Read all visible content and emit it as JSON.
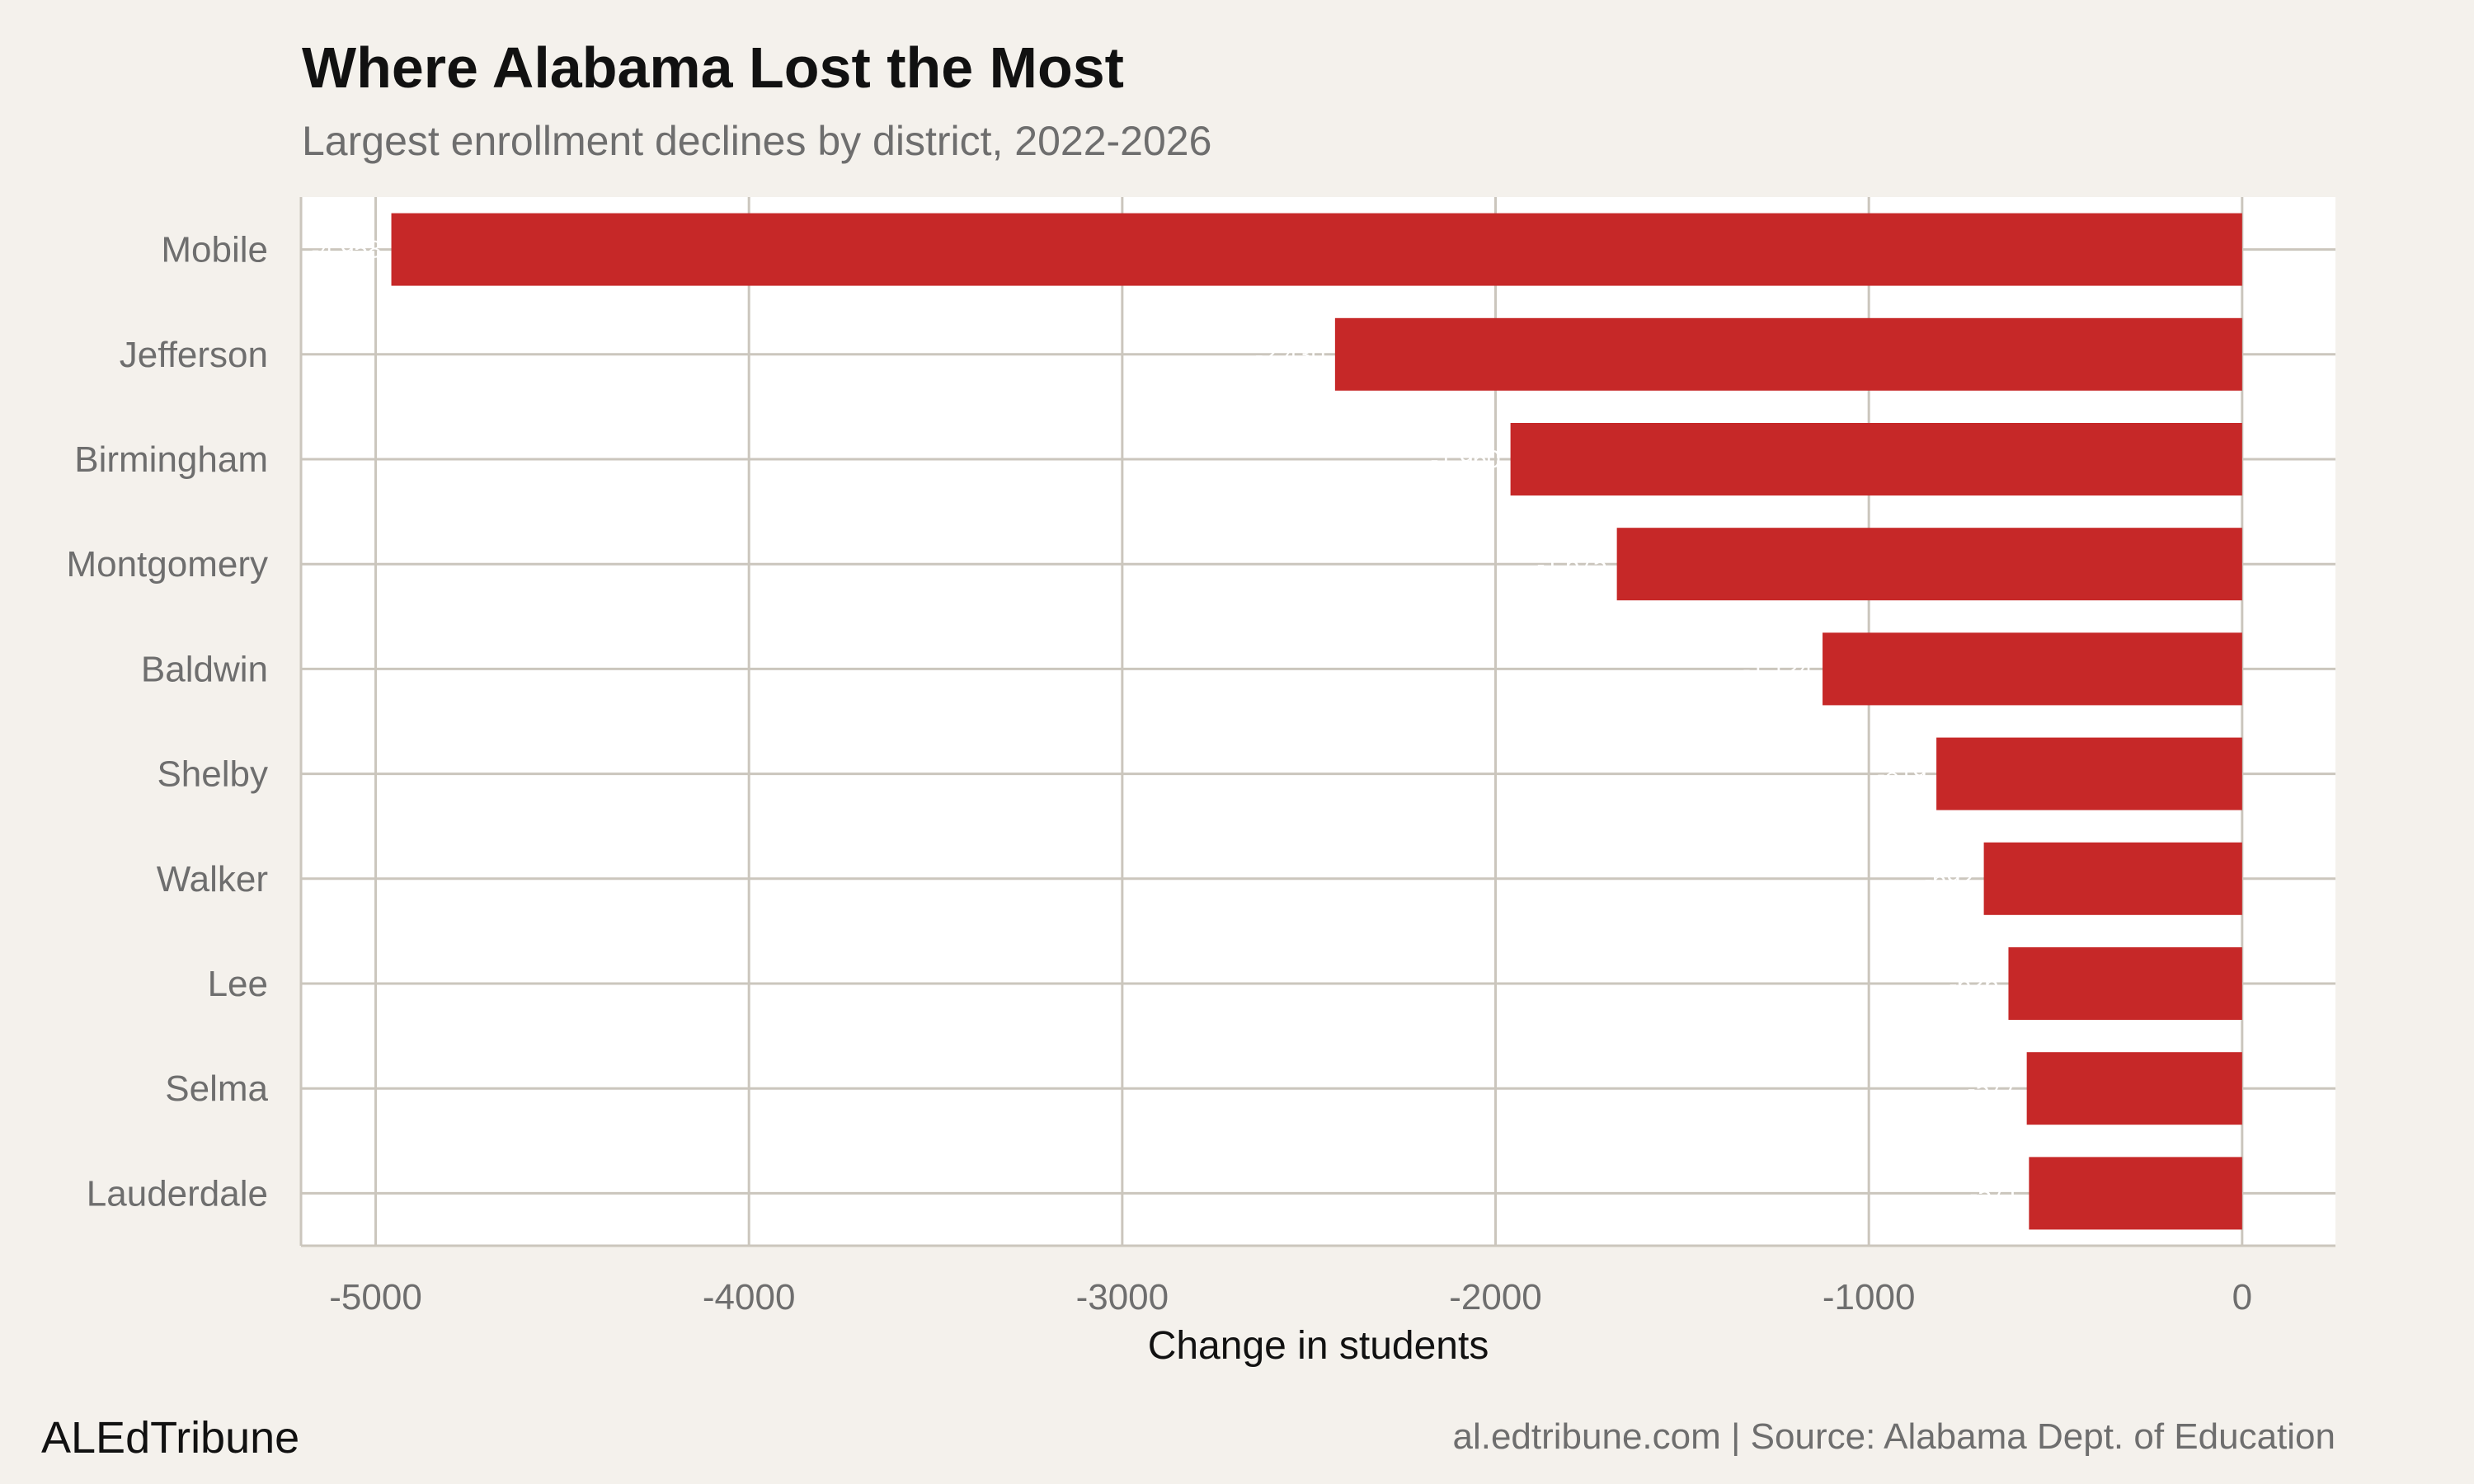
{
  "chart_data": {
    "type": "bar",
    "orientation": "horizontal",
    "title": "Where Alabama Lost the Most",
    "subtitle": "Largest enrollment declines by district, 2022-2026",
    "xlabel": "Change in students",
    "ylabel": "",
    "categories": [
      "Mobile",
      "Jefferson",
      "Birmingham",
      "Montgomery",
      "Baldwin",
      "Shelby",
      "Walker",
      "Lee",
      "Selma",
      "Lauderdale"
    ],
    "values": [
      -4958,
      -2430,
      -1960,
      -1675,
      -1124,
      -819,
      -692,
      -626,
      -577,
      -571
    ],
    "xlim": [
      -5200,
      250
    ],
    "xticks": [
      -5000,
      -4000,
      -3000,
      -2000,
      -1000,
      0
    ],
    "xtick_labels": [
      "-5000",
      "-4000",
      "-3000",
      "-2000",
      "-1000",
      "0"
    ],
    "grid": true,
    "bar_color": "#c62828",
    "panel_color": "#ffffff",
    "background_color": "#f4f1ec",
    "grid_color": "#cbc6bd"
  },
  "footer": {
    "brand": "ALEdTribune",
    "source": "al.edtribune.com | Source: Alabama Dept. of Education"
  }
}
